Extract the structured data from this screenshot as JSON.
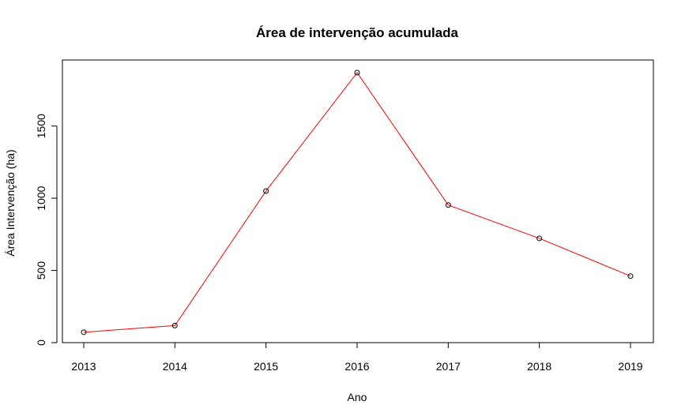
{
  "chart_data": {
    "type": "line",
    "title": "Área de intervenção acumulada",
    "xlabel": "Ano",
    "ylabel": "Área Intervenção (ha)",
    "x": [
      2013,
      2014,
      2015,
      2016,
      2017,
      2018,
      2019
    ],
    "series": [
      {
        "values": [
          72,
          118,
          1050,
          1870,
          953,
          722,
          461
        ]
      }
    ],
    "xlim": [
      2013,
      2019
    ],
    "ylim": [
      0,
      1870
    ],
    "x_ticks": [
      "2013",
      "2014",
      "2015",
      "2016",
      "2017",
      "2018",
      "2019"
    ],
    "y_ticks": [
      "0",
      "500",
      "1000",
      "1500"
    ],
    "line_color": "#ff0000",
    "marker": "open-circle",
    "grid": false,
    "legend": "none"
  }
}
